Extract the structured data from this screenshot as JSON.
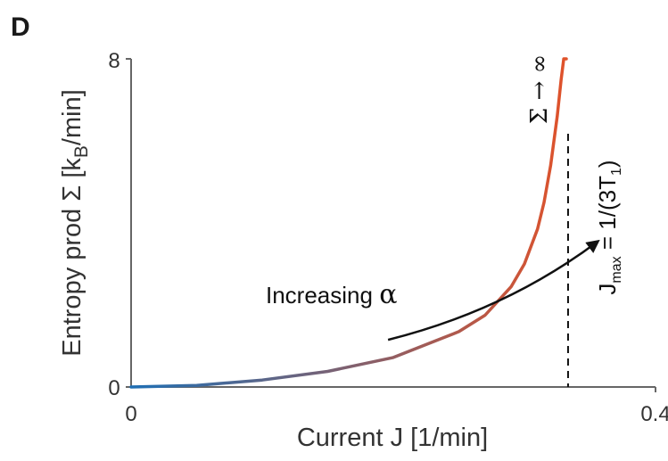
{
  "panel_label": "D",
  "chart_data": {
    "type": "line",
    "title": "",
    "xlabel": "Current J [1/min]",
    "ylabel_parts": {
      "pre": "Entropy prod Σ [k",
      "sub": "B",
      "post": "/min]"
    },
    "xlim": [
      0,
      0.4
    ],
    "ylim": [
      0,
      8
    ],
    "x_tick_labels": [
      "0",
      "0.4"
    ],
    "y_tick_labels": [
      "0",
      "8"
    ],
    "grid": false,
    "series": [
      {
        "color_start": "#1f6fb4",
        "color_end": "#e0522a",
        "x": [
          0,
          0.05,
          0.1,
          0.15,
          0.2,
          0.25,
          0.27,
          0.29,
          0.3,
          0.31,
          0.315,
          0.32,
          0.325,
          0.328,
          0.33,
          0.332
        ],
        "y": [
          0,
          0.04,
          0.17,
          0.38,
          0.72,
          1.35,
          1.75,
          2.45,
          3.0,
          3.85,
          4.5,
          5.4,
          6.6,
          7.5,
          8.0,
          8.0
        ]
      }
    ],
    "asymptote": {
      "x": 0.3333,
      "label_parts": {
        "j": "J",
        "sub1": "max",
        "eq": " = 1/(3T",
        "sub2": "1",
        "close": ")"
      },
      "divergence_label": "Σ → ∞"
    },
    "annotation": {
      "text_pre": "Increasing ",
      "text_symbol": "α",
      "arrow_from": [
        0.245,
        1.15
      ],
      "arrow_to": [
        0.445,
        3.55
      ]
    }
  }
}
